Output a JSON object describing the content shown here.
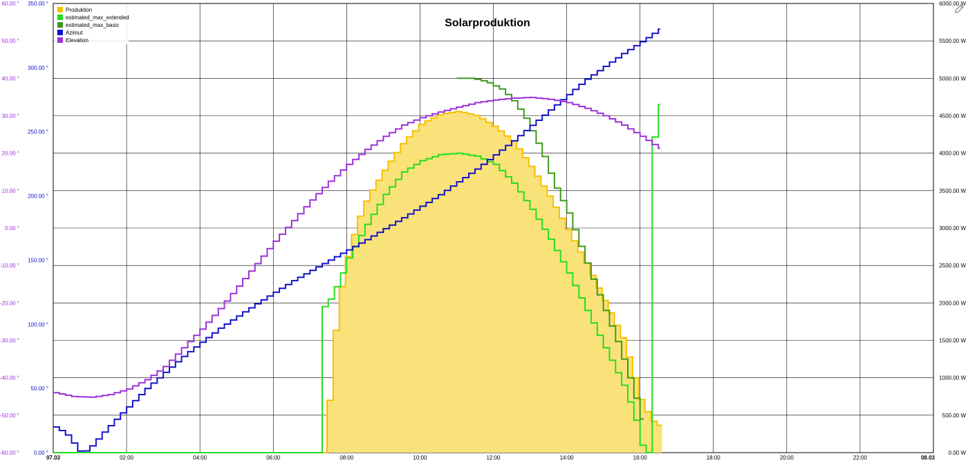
{
  "chart_data": {
    "type": "line",
    "title": "Solarproduktion",
    "legend_position": "top-left",
    "grid": true,
    "x": {
      "range_hours": [
        0,
        24
      ],
      "tick_labels": [
        "07.03",
        "02:00",
        "04:00",
        "06:00",
        "08:00",
        "10:00",
        "12:00",
        "14:00",
        "16:00",
        "18:00",
        "20:00",
        "22:00",
        "08.03"
      ]
    },
    "y_axes": {
      "elevation": {
        "range": [
          -60,
          60
        ],
        "step": 10,
        "unit": "°",
        "color": "#9b30d9",
        "tick_labels": [
          "60.00 °",
          "50.00 °",
          "40.00 °",
          "30.00 °",
          "20.00 °",
          "10.00 °",
          "0.00 °",
          "-10.00 °",
          "-20.00 °",
          "-30.00 °",
          "-40.00 °",
          "-50.00 °",
          "-60.00 °"
        ]
      },
      "azimut": {
        "range": [
          0,
          350
        ],
        "step": 50,
        "unit": "°",
        "color": "#1010c8",
        "tick_labels": [
          "350.00 °",
          "300.00 °",
          "250.00 °",
          "200.00 °",
          "150.00 °",
          "100.00 °",
          "50.00 °",
          "0.00 °"
        ]
      },
      "power": {
        "range": [
          0,
          6000
        ],
        "step": 500,
        "unit": "W",
        "color": "#000000",
        "tick_labels": [
          "6000.00 W",
          "5500.00 W",
          "5000.00 W",
          "4500.00 W",
          "4000.00 W",
          "3500.00 W",
          "3000.00 W",
          "2500.00 W",
          "2000.00 W",
          "1500.00 W",
          "1000.00 W",
          "500.00 W",
          "0.00 W"
        ]
      }
    },
    "series": [
      {
        "name": "Produktion",
        "axis": "power",
        "color": "#f5c000",
        "fill": "#fae27a",
        "style": "area-step",
        "points": [
          [
            7.3,
            0
          ],
          [
            7.4,
            300
          ],
          [
            7.5,
            900
          ],
          [
            7.6,
            1500
          ],
          [
            7.75,
            2100
          ],
          [
            8.0,
            2700
          ],
          [
            8.25,
            3100
          ],
          [
            8.5,
            3400
          ],
          [
            9.0,
            3800
          ],
          [
            9.5,
            4150
          ],
          [
            10.0,
            4400
          ],
          [
            10.5,
            4520
          ],
          [
            11.0,
            4560
          ],
          [
            11.5,
            4500
          ],
          [
            12.0,
            4350
          ],
          [
            12.5,
            4150
          ],
          [
            13.0,
            3800
          ],
          [
            13.5,
            3400
          ],
          [
            14.0,
            2950
          ],
          [
            14.5,
            2500
          ],
          [
            15.0,
            2000
          ],
          [
            15.5,
            1500
          ],
          [
            15.8,
            1000
          ],
          [
            16.0,
            650
          ],
          [
            16.3,
            420
          ],
          [
            16.6,
            320
          ]
        ]
      },
      {
        "name": "estimated_max_extended",
        "axis": "power",
        "color": "#22dd22",
        "style": "step",
        "points": [
          [
            0,
            0
          ],
          [
            7.2,
            0
          ],
          [
            7.25,
            1900
          ],
          [
            7.5,
            2050
          ],
          [
            7.75,
            2300
          ],
          [
            8.0,
            2600
          ],
          [
            8.5,
            3050
          ],
          [
            9.0,
            3450
          ],
          [
            9.5,
            3750
          ],
          [
            10.0,
            3900
          ],
          [
            10.5,
            3980
          ],
          [
            11.0,
            4000
          ],
          [
            11.5,
            3960
          ],
          [
            12.0,
            3850
          ],
          [
            12.5,
            3600
          ],
          [
            13.0,
            3250
          ],
          [
            13.5,
            2850
          ],
          [
            14.0,
            2400
          ],
          [
            14.5,
            1900
          ],
          [
            15.0,
            1400
          ],
          [
            15.5,
            900
          ],
          [
            15.8,
            500
          ],
          [
            16.05,
            0
          ],
          [
            16.2,
            0
          ],
          [
            16.25,
            4000
          ],
          [
            16.5,
            4650
          ],
          [
            16.55,
            300
          ]
        ]
      },
      {
        "name": "estimated_max_basic",
        "axis": "power",
        "color": "#3c9a1a",
        "style": "step",
        "points": [
          [
            11.0,
            5000
          ],
          [
            11.4,
            5000
          ],
          [
            11.8,
            4950
          ],
          [
            12.2,
            4850
          ],
          [
            12.5,
            4700
          ],
          [
            12.8,
            4500
          ],
          [
            13.0,
            4300
          ],
          [
            13.3,
            4000
          ],
          [
            13.6,
            3600
          ],
          [
            14.0,
            3200
          ],
          [
            14.3,
            2800
          ],
          [
            14.6,
            2400
          ],
          [
            15.0,
            1900
          ],
          [
            15.4,
            1400
          ],
          [
            15.7,
            950
          ],
          [
            16.0,
            450
          ],
          [
            16.1,
            100
          ]
        ]
      },
      {
        "name": "Azimut",
        "axis": "azimut",
        "color": "#1010c8",
        "style": "step",
        "points": [
          [
            0,
            20
          ],
          [
            0.3,
            15
          ],
          [
            0.7,
            0
          ],
          [
            0.9,
            2
          ],
          [
            1.3,
            15
          ],
          [
            1.8,
            30
          ],
          [
            2.5,
            50
          ],
          [
            3.5,
            75
          ],
          [
            4.5,
            97
          ],
          [
            5.5,
            116
          ],
          [
            6.5,
            134
          ],
          [
            7.5,
            150
          ],
          [
            8.5,
            166
          ],
          [
            9.5,
            183
          ],
          [
            10.5,
            201
          ],
          [
            11.5,
            221
          ],
          [
            12.5,
            243
          ],
          [
            13.5,
            267
          ],
          [
            14.5,
            291
          ],
          [
            15.5,
            311
          ],
          [
            16.1,
            322
          ],
          [
            16.55,
            331
          ]
        ]
      },
      {
        "name": "Elevation",
        "axis": "elevation",
        "color": "#9b30d9",
        "style": "step",
        "points": [
          [
            0,
            -44
          ],
          [
            0.5,
            -45
          ],
          [
            1.0,
            -45.2
          ],
          [
            1.5,
            -44.5
          ],
          [
            2.0,
            -43
          ],
          [
            2.5,
            -40.5
          ],
          [
            3.0,
            -37
          ],
          [
            3.5,
            -32
          ],
          [
            4.0,
            -27
          ],
          [
            4.5,
            -21.5
          ],
          [
            5.0,
            -15.5
          ],
          [
            5.5,
            -9.5
          ],
          [
            6.0,
            -3.5
          ],
          [
            6.5,
            2
          ],
          [
            7.0,
            7.5
          ],
          [
            7.5,
            12.5
          ],
          [
            8.0,
            17
          ],
          [
            8.5,
            21
          ],
          [
            9.0,
            24.5
          ],
          [
            9.5,
            27.5
          ],
          [
            10.0,
            29.5
          ],
          [
            10.5,
            31
          ],
          [
            11.0,
            32.3
          ],
          [
            11.5,
            33.5
          ],
          [
            12.0,
            34.2
          ],
          [
            12.5,
            34.7
          ],
          [
            13.0,
            34.9
          ],
          [
            13.5,
            34.4
          ],
          [
            14.0,
            33.5
          ],
          [
            14.5,
            32
          ],
          [
            15.0,
            30
          ],
          [
            15.5,
            27.5
          ],
          [
            16.0,
            24.5
          ],
          [
            16.3,
            22.5
          ],
          [
            16.55,
            21
          ]
        ]
      }
    ]
  }
}
